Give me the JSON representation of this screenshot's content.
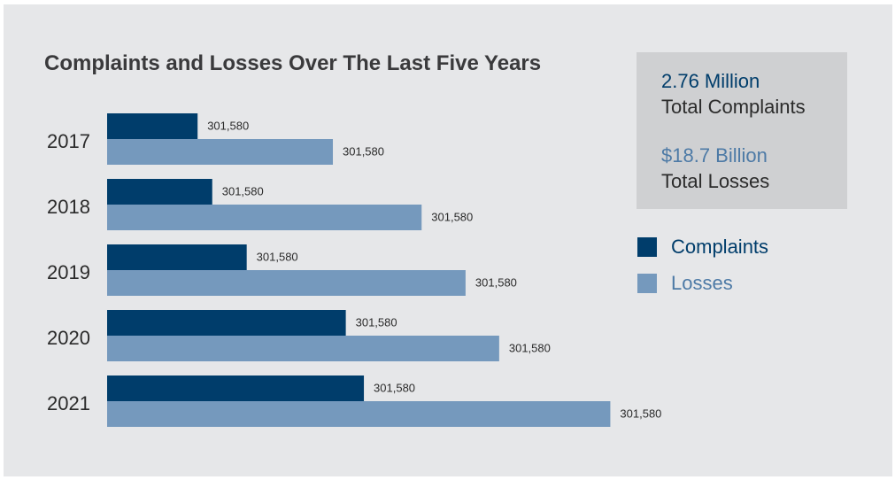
{
  "title": "Complaints and Losses Over The Last Five Years",
  "summary": {
    "complaints_value": "2.76 Million",
    "complaints_label": "Total Complaints",
    "losses_value": "$18.7 Billion",
    "losses_label": "Total Losses"
  },
  "legend": {
    "complaints": "Complaints",
    "losses": "Losses"
  },
  "colors": {
    "complaints": "#003d6b",
    "losses": "#7599bd",
    "complaints_text": "#003d6b",
    "losses_text": "#4d7aa6",
    "year_text": "#2b2b2b",
    "bar_label": "#2b2b2b"
  },
  "chart_data": {
    "type": "bar",
    "orientation": "horizontal",
    "title": "Complaints and Losses Over The Last Five Years",
    "categories": [
      "2017",
      "2018",
      "2019",
      "2020",
      "2021"
    ],
    "series": [
      {
        "name": "Complaints",
        "values": [
          105,
          122,
          162,
          277,
          298
        ],
        "labels": [
          "301,580",
          "301,580",
          "301,580",
          "301,580",
          "301,580"
        ]
      },
      {
        "name": "Losses",
        "values": [
          262,
          365,
          416,
          455,
          584
        ],
        "labels": [
          "301,580",
          "301,580",
          "301,580",
          "301,580",
          "301,580"
        ]
      }
    ],
    "xlim": [
      0,
      600
    ],
    "grid": false,
    "legend_position": "right"
  }
}
